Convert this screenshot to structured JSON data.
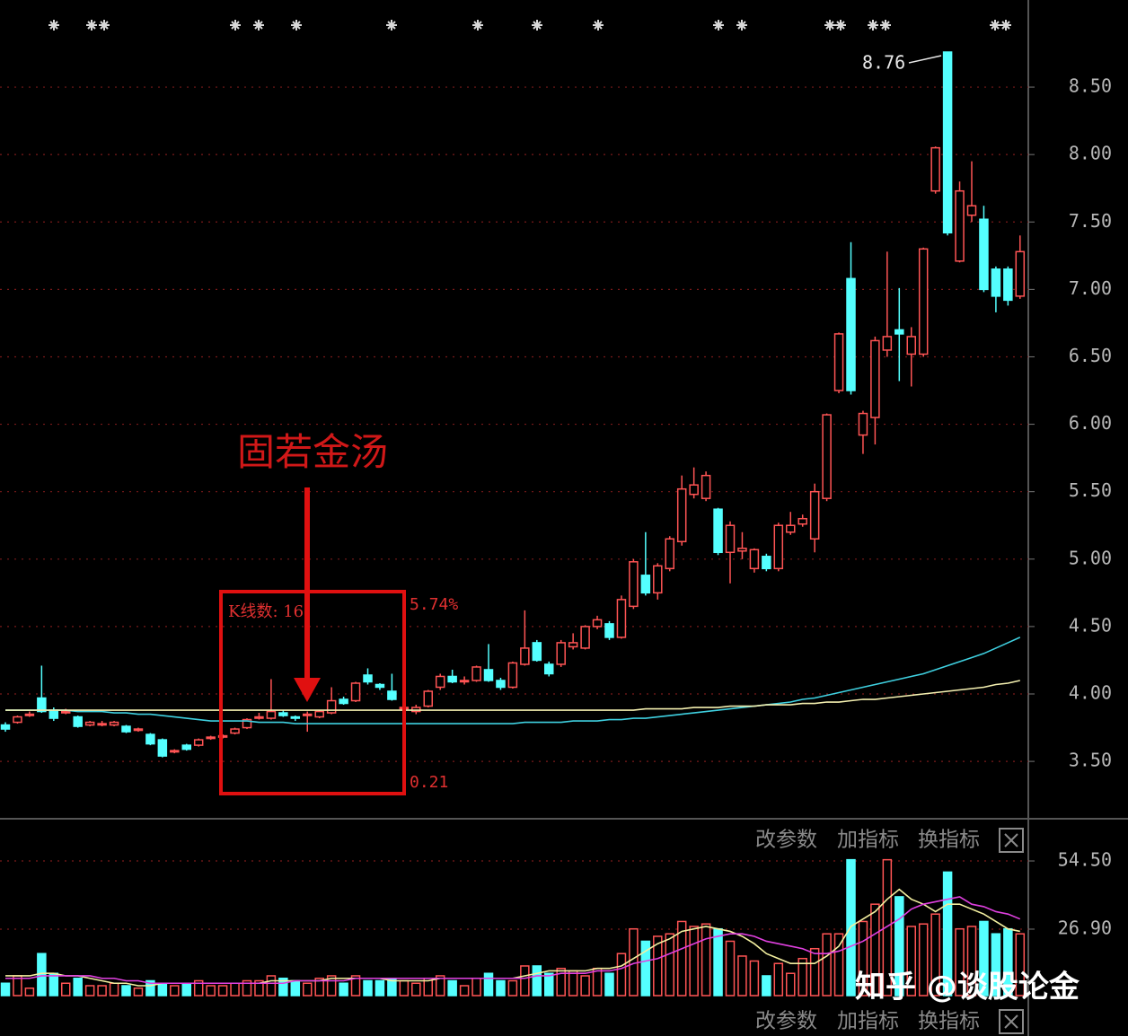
{
  "chart_data": [
    {
      "type": "candlestick",
      "up_color": "#ff5454",
      "down_color": "#54ffff",
      "open": [
        3.77,
        3.79,
        3.85,
        3.97,
        3.88,
        3.87,
        3.83,
        3.77,
        3.77,
        3.77,
        3.76,
        3.73,
        3.7,
        3.66,
        3.57,
        3.62,
        3.62,
        3.67,
        3.68,
        3.71,
        3.75,
        3.82,
        3.82,
        3.86,
        3.83,
        3.84,
        3.83,
        3.86,
        3.96,
        3.95,
        4.14,
        4.07,
        4.02,
        3.9,
        3.87,
        3.91,
        4.05,
        4.13,
        4.1,
        4.1,
        4.18,
        4.1,
        4.05,
        4.22,
        4.38,
        4.22,
        4.22,
        4.35,
        4.34,
        4.5,
        4.52,
        4.42,
        4.65,
        4.88,
        4.75,
        4.93,
        5.13,
        5.48,
        5.45,
        5.37,
        5.05,
        5.06,
        4.93,
        5.02,
        4.93,
        5.2,
        5.26,
        5.15,
        5.45,
        6.25,
        7.08,
        5.92,
        6.05,
        6.55,
        6.7,
        6.52,
        6.52,
        7.73,
        8.76,
        7.21,
        7.55,
        7.52,
        7.15,
        7.15,
        6.95
      ],
      "high": [
        3.79,
        3.84,
        3.87,
        4.21,
        3.9,
        3.89,
        3.84,
        3.8,
        3.8,
        3.8,
        3.77,
        3.75,
        3.71,
        3.67,
        3.59,
        3.63,
        3.67,
        3.69,
        3.7,
        3.75,
        3.82,
        3.86,
        4.11,
        3.88,
        3.84,
        3.87,
        3.88,
        4.05,
        3.98,
        4.09,
        4.19,
        4.08,
        4.15,
        3.93,
        3.92,
        4.03,
        4.15,
        4.18,
        4.13,
        4.21,
        4.37,
        4.12,
        4.24,
        4.62,
        4.4,
        4.24,
        4.4,
        4.45,
        4.51,
        4.58,
        4.54,
        4.73,
        5.0,
        5.2,
        4.97,
        5.17,
        5.62,
        5.68,
        5.65,
        5.38,
        5.28,
        5.2,
        5.08,
        5.04,
        5.27,
        5.35,
        5.33,
        5.56,
        6.08,
        6.68,
        7.35,
        6.1,
        6.65,
        7.28,
        7.01,
        6.72,
        7.31,
        8.06,
        8.76,
        7.8,
        7.95,
        7.62,
        7.17,
        7.17,
        7.4
      ],
      "low": [
        3.72,
        3.78,
        3.83,
        3.86,
        3.8,
        3.85,
        3.75,
        3.76,
        3.76,
        3.76,
        3.71,
        3.72,
        3.62,
        3.53,
        3.56,
        3.58,
        3.61,
        3.66,
        3.67,
        3.7,
        3.74,
        3.81,
        3.81,
        3.83,
        3.8,
        3.72,
        3.82,
        3.85,
        3.92,
        3.94,
        4.07,
        4.03,
        3.95,
        3.88,
        3.85,
        3.9,
        4.03,
        4.08,
        4.07,
        4.09,
        4.09,
        4.03,
        4.04,
        4.21,
        4.24,
        4.13,
        4.2,
        4.33,
        4.33,
        4.48,
        4.4,
        4.41,
        4.63,
        4.73,
        4.7,
        4.91,
        5.1,
        5.45,
        5.43,
        5.03,
        4.82,
        5.0,
        4.9,
        4.91,
        4.91,
        5.18,
        5.24,
        5.05,
        5.43,
        6.23,
        6.22,
        5.78,
        5.85,
        6.5,
        6.32,
        6.28,
        6.5,
        7.71,
        7.4,
        7.2,
        7.5,
        6.98,
        6.83,
        6.88,
        6.93
      ],
      "close": [
        3.74,
        3.83,
        3.85,
        3.87,
        3.82,
        3.87,
        3.76,
        3.79,
        3.78,
        3.79,
        3.72,
        3.74,
        3.63,
        3.54,
        3.58,
        3.59,
        3.66,
        3.68,
        3.69,
        3.74,
        3.81,
        3.83,
        3.87,
        3.84,
        3.82,
        3.85,
        3.87,
        3.95,
        3.93,
        4.08,
        4.09,
        4.05,
        3.96,
        3.9,
        3.9,
        4.02,
        4.13,
        4.09,
        4.1,
        4.2,
        4.1,
        4.05,
        4.23,
        4.34,
        4.25,
        4.15,
        4.38,
        4.38,
        4.5,
        4.55,
        4.42,
        4.7,
        4.98,
        4.75,
        4.95,
        5.15,
        5.52,
        5.55,
        5.62,
        5.05,
        5.25,
        5.08,
        5.07,
        4.93,
        5.25,
        5.25,
        5.3,
        5.5,
        6.07,
        6.67,
        6.25,
        6.08,
        6.62,
        6.65,
        6.67,
        6.65,
        7.3,
        8.05,
        7.42,
        7.73,
        7.62,
        7.0,
        6.95,
        6.92,
        7.28
      ],
      "moving_averages": [
        {
          "color": "#3fd0e0",
          "values": [
            3.88,
            3.88,
            3.88,
            3.88,
            3.88,
            3.88,
            3.87,
            3.87,
            3.87,
            3.86,
            3.86,
            3.85,
            3.85,
            3.84,
            3.83,
            3.82,
            3.81,
            3.8,
            3.8,
            3.8,
            3.8,
            3.79,
            3.79,
            3.79,
            3.78,
            3.78,
            3.78,
            3.78,
            3.78,
            3.78,
            3.78,
            3.78,
            3.78,
            3.78,
            3.78,
            3.78,
            3.78,
            3.78,
            3.78,
            3.78,
            3.78,
            3.78,
            3.78,
            3.79,
            3.79,
            3.79,
            3.79,
            3.8,
            3.8,
            3.8,
            3.81,
            3.81,
            3.82,
            3.82,
            3.83,
            3.84,
            3.85,
            3.86,
            3.87,
            3.88,
            3.89,
            3.9,
            3.91,
            3.92,
            3.93,
            3.94,
            3.96,
            3.97,
            3.99,
            4.01,
            4.03,
            4.05,
            4.07,
            4.09,
            4.11,
            4.13,
            4.15,
            4.18,
            4.21,
            4.24,
            4.27,
            4.3,
            4.34,
            4.38,
            4.42
          ]
        },
        {
          "color": "#f4f0b0",
          "values": [
            3.88,
            3.88,
            3.88,
            3.88,
            3.88,
            3.88,
            3.88,
            3.88,
            3.88,
            3.88,
            3.88,
            3.88,
            3.88,
            3.88,
            3.88,
            3.88,
            3.88,
            3.88,
            3.88,
            3.88,
            3.88,
            3.88,
            3.88,
            3.88,
            3.88,
            3.88,
            3.88,
            3.88,
            3.88,
            3.88,
            3.88,
            3.88,
            3.88,
            3.88,
            3.88,
            3.88,
            3.88,
            3.88,
            3.88,
            3.88,
            3.88,
            3.88,
            3.88,
            3.88,
            3.88,
            3.88,
            3.88,
            3.88,
            3.88,
            3.88,
            3.88,
            3.88,
            3.88,
            3.89,
            3.89,
            3.89,
            3.89,
            3.9,
            3.9,
            3.9,
            3.91,
            3.91,
            3.91,
            3.92,
            3.92,
            3.92,
            3.93,
            3.93,
            3.94,
            3.94,
            3.95,
            3.96,
            3.96,
            3.97,
            3.98,
            3.99,
            4.0,
            4.01,
            4.02,
            4.03,
            4.04,
            4.05,
            4.07,
            4.08,
            4.1
          ]
        }
      ],
      "ylim": [
        3.088,
        9.146
      ],
      "yticks": [
        {
          "value": 3.5,
          "label": "3.50"
        },
        {
          "value": 4,
          "label": "4.00"
        },
        {
          "value": 4.5,
          "label": "4.50"
        },
        {
          "value": 5,
          "label": "5.00"
        },
        {
          "value": 5.5,
          "label": "5.50"
        },
        {
          "value": 6,
          "label": "6.00"
        },
        {
          "value": 6.5,
          "label": "6.50"
        },
        {
          "value": 7,
          "label": "7.00"
        },
        {
          "value": 7.5,
          "label": "7.50"
        },
        {
          "value": 8,
          "label": "8.00"
        },
        {
          "value": 8.5,
          "label": "8.50"
        }
      ],
      "grid": true,
      "high_label": "8.76",
      "annotation": "固若金汤",
      "range_count": "K线数: 16",
      "range_change": "5.74%",
      "range_low": "0.21"
    },
    {
      "type": "volume",
      "values": [
        5,
        8,
        3,
        17,
        9,
        5,
        7,
        4,
        4,
        5,
        4,
        3,
        6,
        5,
        4,
        5,
        6,
        4,
        4,
        5,
        6,
        6,
        8,
        7,
        6,
        5,
        7,
        8,
        5,
        8,
        6,
        6,
        7,
        6,
        5,
        7,
        8,
        6,
        4,
        7,
        9,
        6,
        6,
        12,
        12,
        9,
        11,
        10,
        8,
        11,
        9,
        17,
        27,
        22,
        24,
        25,
        30,
        28,
        29,
        27,
        22,
        16,
        14,
        8,
        13,
        9,
        15,
        19,
        25,
        25,
        55,
        30,
        37,
        55,
        40,
        28,
        29,
        33,
        50,
        27,
        28,
        30,
        25,
        27,
        25
      ],
      "moving_averages": [
        {
          "color": "#f4f0a0",
          "values": [
            8,
            8,
            8,
            9,
            9,
            8,
            8,
            7,
            6,
            5,
            5,
            4,
            4,
            5,
            5,
            5,
            5,
            5,
            5,
            5,
            5,
            5,
            6,
            6,
            6,
            6,
            6,
            7,
            7,
            7,
            7,
            7,
            6,
            6,
            6,
            6,
            7,
            7,
            7,
            7,
            7,
            7,
            7,
            8,
            9,
            10,
            10,
            10,
            10,
            11,
            11,
            12,
            15,
            18,
            21,
            23,
            26,
            27,
            28,
            27,
            26,
            24,
            21,
            17,
            15,
            13,
            13,
            13,
            16,
            20,
            28,
            31,
            34,
            39,
            43,
            39,
            37,
            34,
            37,
            37,
            35,
            33,
            30,
            27,
            26
          ]
        },
        {
          "color": "#e040e0",
          "values": [
            7,
            7,
            7,
            8,
            8,
            8,
            8,
            8,
            7,
            7,
            6,
            6,
            5,
            5,
            5,
            5,
            5,
            5,
            5,
            5,
            5,
            5,
            5,
            5,
            6,
            6,
            6,
            6,
            6,
            7,
            7,
            7,
            7,
            7,
            7,
            7,
            7,
            7,
            7,
            7,
            7,
            7,
            7,
            7,
            8,
            8,
            9,
            9,
            9,
            10,
            10,
            11,
            13,
            14,
            15,
            17,
            19,
            21,
            23,
            24,
            25,
            25,
            24,
            22,
            21,
            20,
            19,
            17,
            17,
            18,
            20,
            22,
            25,
            28,
            31,
            35,
            37,
            38,
            39,
            40,
            37,
            36,
            34,
            33,
            31
          ]
        }
      ],
      "ylim": [
        0,
        70.5
      ],
      "yticks": [
        {
          "value": 26.9,
          "label": "26.90"
        },
        {
          "value": 54.5,
          "label": "54.50"
        }
      ],
      "grid": true
    }
  ],
  "toolbar": [
    "改参数",
    "加指标",
    "换指标"
  ],
  "toolbar_bottom": [
    "改参数",
    "加指标",
    "换指标"
  ],
  "watermark": "知乎 @谈股论金"
}
